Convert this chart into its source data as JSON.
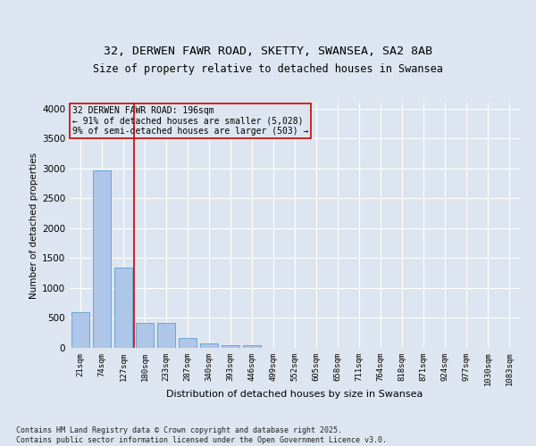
{
  "title1": "32, DERWEN FAWR ROAD, SKETTY, SWANSEA, SA2 8AB",
  "title2": "Size of property relative to detached houses in Swansea",
  "xlabel": "Distribution of detached houses by size in Swansea",
  "ylabel": "Number of detached properties",
  "categories": [
    "21sqm",
    "74sqm",
    "127sqm",
    "180sqm",
    "233sqm",
    "287sqm",
    "340sqm",
    "393sqm",
    "446sqm",
    "499sqm",
    "552sqm",
    "605sqm",
    "658sqm",
    "711sqm",
    "764sqm",
    "818sqm",
    "871sqm",
    "924sqm",
    "977sqm",
    "1030sqm",
    "1083sqm"
  ],
  "values": [
    600,
    2970,
    1340,
    420,
    420,
    160,
    80,
    45,
    45,
    0,
    0,
    0,
    0,
    0,
    0,
    0,
    0,
    0,
    0,
    0,
    0
  ],
  "bar_color": "#aec6e8",
  "bar_edge_color": "#5a9fd4",
  "vline_x_index": 3,
  "vline_color": "#cc0000",
  "annotation_text": "32 DERWEN FAWR ROAD: 196sqm\n← 91% of detached houses are smaller (5,028)\n9% of semi-detached houses are larger (503) →",
  "annotation_box_edge": "#cc0000",
  "annotation_fontsize": 7.0,
  "ylim": [
    0,
    4100
  ],
  "yticks": [
    0,
    500,
    1000,
    1500,
    2000,
    2500,
    3000,
    3500,
    4000
  ],
  "background_color": "#dde6f0",
  "plot_bg_color": "#dde6f0",
  "grid_color": "#ffffff",
  "title1_fontsize": 9.5,
  "title2_fontsize": 8.5,
  "ylabel_fontsize": 7.5,
  "xlabel_fontsize": 8.0,
  "ytick_fontsize": 7.5,
  "xtick_fontsize": 6.5,
  "footer_text": "Contains HM Land Registry data © Crown copyright and database right 2025.\nContains public sector information licensed under the Open Government Licence v3.0.",
  "footer_fontsize": 6.0
}
